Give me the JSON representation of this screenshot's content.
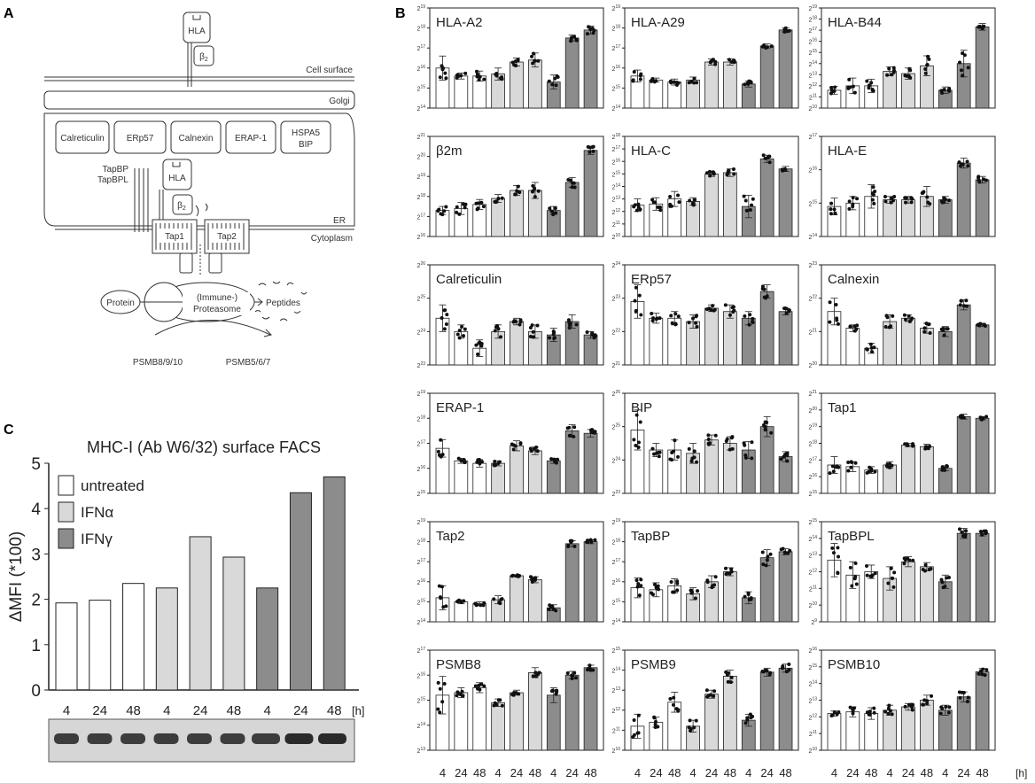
{
  "panels": {
    "a": "A",
    "b": "B",
    "c": "C"
  },
  "diagram": {
    "hla": "HLA",
    "b2": "β",
    "cell_surface": "Cell surface",
    "golgi": "Golgi",
    "er_proteins": [
      "Calreticulin",
      "ERp57",
      "Calnexin",
      "ERAP-1"
    ],
    "hspa5_line1": "HSPA5",
    "hspa5_line2": "BIP",
    "tapbp": "TapBP",
    "tapbpl": "TapBPL",
    "er": "ER",
    "cytoplasm": "Cytoplasm",
    "tap1": "Tap1",
    "tap2": "Tap2",
    "protein": "Protein",
    "proteasome_line1": "(Immune-)",
    "proteasome_line2": "Proteasome",
    "peptides": "Peptides",
    "psmb_immuno": "PSMB8/9/10",
    "psmb_const": "PSMB5/6/7"
  },
  "colors": {
    "untreated": "#ffffff",
    "ifna": "#d9d9d9",
    "ifng": "#8c8c8c",
    "stroke": "#222222",
    "grid": "#444444"
  },
  "chart_data": [
    {
      "type": "bar",
      "title": "MHC-I (Ab W6/32) surface FACS",
      "ylabel": "ΔMFI (*100)",
      "ylim": [
        0,
        5
      ],
      "yticks": [
        "0",
        "1",
        "2",
        "3",
        "4",
        "5"
      ],
      "categories": [
        "4",
        "24",
        "48",
        "4",
        "24",
        "48",
        "4",
        "24",
        "48"
      ],
      "unit": "[h]",
      "legend": [
        "untreated",
        "IFNα",
        "IFNγ"
      ],
      "treatment": [
        "untreated",
        "untreated",
        "untreated",
        "ifna",
        "ifna",
        "ifna",
        "ifng",
        "ifng",
        "ifng"
      ],
      "values": [
        1.92,
        1.98,
        2.35,
        2.25,
        3.38,
        2.93,
        2.25,
        4.35,
        4.7
      ]
    },
    {
      "title": "HLA-A2",
      "yexp": [
        14,
        19
      ],
      "values": [
        16.0,
        15.6,
        15.6,
        15.7,
        16.3,
        16.4,
        15.3,
        17.5,
        17.9
      ],
      "err": [
        0.6,
        0.15,
        0.25,
        0.3,
        0.2,
        0.35,
        0.35,
        0.15,
        0.2
      ]
    },
    {
      "title": "HLA-A29",
      "yexp": [
        14,
        19
      ],
      "values": [
        15.6,
        15.4,
        15.3,
        15.4,
        16.3,
        16.3,
        15.2,
        17.1,
        17.9
      ],
      "err": [
        0.3,
        0.1,
        0.15,
        0.15,
        0.15,
        0.15,
        0.15,
        0.1,
        0.1
      ]
    },
    {
      "title": "HLA-B44",
      "yexp": [
        10,
        19
      ],
      "values": [
        11.6,
        12.0,
        12.0,
        13.3,
        13.1,
        13.8,
        11.6,
        14.0,
        17.3
      ],
      "err": [
        0.35,
        0.7,
        0.6,
        0.4,
        0.5,
        0.9,
        0.3,
        1.2,
        0.3
      ]
    },
    {
      "title": "β2m",
      "yexp": [
        16,
        21
      ],
      "values": [
        17.3,
        17.4,
        17.6,
        17.9,
        18.3,
        18.3,
        17.3,
        18.7,
        20.3
      ],
      "err": [
        0.2,
        0.3,
        0.25,
        0.2,
        0.25,
        0.4,
        0.2,
        0.25,
        0.2
      ]
    },
    {
      "title": "HLA-C",
      "yexp": [
        10,
        18
      ],
      "values": [
        12.5,
        12.6,
        13.0,
        12.8,
        15.0,
        15.1,
        12.4,
        16.2,
        15.4
      ],
      "err": [
        0.5,
        0.5,
        0.6,
        0.3,
        0.2,
        0.3,
        0.9,
        0.3,
        0.2
      ]
    },
    {
      "title": "HLA-E",
      "yexp": [
        14,
        17
      ],
      "values": [
        14.9,
        15.0,
        15.2,
        15.1,
        15.1,
        15.2,
        15.1,
        16.2,
        15.7
      ],
      "err": [
        0.25,
        0.2,
        0.35,
        0.1,
        0.1,
        0.3,
        0.1,
        0.15,
        0.1
      ]
    },
    {
      "title": "Calreticulin",
      "yexp": [
        23,
        26
      ],
      "values": [
        24.4,
        24.0,
        23.5,
        24.0,
        24.3,
        24.0,
        23.9,
        24.3,
        23.9
      ],
      "err": [
        0.4,
        0.2,
        0.25,
        0.2,
        0.1,
        0.2,
        0.2,
        0.2,
        0.1
      ]
    },
    {
      "title": "ERp57",
      "yexp": [
        21,
        24
      ],
      "values": [
        22.9,
        22.4,
        22.4,
        22.3,
        22.7,
        22.6,
        22.4,
        23.2,
        22.6
      ],
      "err": [
        0.5,
        0.15,
        0.2,
        0.2,
        0.1,
        0.2,
        0.2,
        0.2,
        0.1
      ]
    },
    {
      "title": "Calnexin",
      "yexp": [
        20,
        23
      ],
      "values": [
        21.6,
        21.1,
        20.5,
        21.3,
        21.4,
        21.1,
        21.0,
        21.8,
        21.2
      ],
      "err": [
        0.4,
        0.1,
        0.15,
        0.2,
        0.1,
        0.15,
        0.15,
        0.15,
        0.05
      ]
    },
    {
      "title": "ERAP-1",
      "yexp": [
        15,
        19
      ],
      "values": [
        16.8,
        16.3,
        16.2,
        16.2,
        16.9,
        16.7,
        16.3,
        17.5,
        17.4
      ],
      "err": [
        0.35,
        0.1,
        0.15,
        0.1,
        0.2,
        0.15,
        0.1,
        0.25,
        0.15
      ]
    },
    {
      "title": "BIP",
      "yexp": [
        23,
        26
      ],
      "values": [
        24.9,
        24.3,
        24.3,
        24.2,
        24.6,
        24.5,
        24.3,
        25.0,
        24.1
      ],
      "err": [
        0.6,
        0.2,
        0.3,
        0.3,
        0.15,
        0.2,
        0.25,
        0.3,
        0.15
      ]
    },
    {
      "title": "Tap1",
      "yexp": [
        15,
        21
      ],
      "values": [
        16.7,
        16.6,
        16.4,
        16.7,
        17.9,
        17.8,
        16.5,
        19.6,
        19.5
      ],
      "err": [
        0.5,
        0.3,
        0.2,
        0.2,
        0.1,
        0.15,
        0.15,
        0.15,
        0.1
      ]
    },
    {
      "title": "Tap2",
      "yexp": [
        14,
        19
      ],
      "values": [
        15.2,
        15.0,
        14.9,
        15.1,
        16.3,
        16.1,
        14.7,
        17.9,
        18.0
      ],
      "err": [
        0.6,
        0.1,
        0.1,
        0.2,
        0.05,
        0.15,
        0.15,
        0.15,
        0.1
      ]
    },
    {
      "title": "TapBP",
      "yexp": [
        14,
        19
      ],
      "values": [
        15.7,
        15.6,
        15.8,
        15.4,
        16.0,
        16.5,
        15.2,
        17.2,
        17.5
      ],
      "err": [
        0.5,
        0.35,
        0.35,
        0.3,
        0.3,
        0.2,
        0.3,
        0.4,
        0.15
      ]
    },
    {
      "title": "TapBPL",
      "yexp": [
        9,
        15
      ],
      "values": [
        12.7,
        11.8,
        12.0,
        11.6,
        12.6,
        12.3,
        11.4,
        14.3,
        14.3
      ],
      "err": [
        1.0,
        0.8,
        0.4,
        0.7,
        0.3,
        0.25,
        0.4,
        0.3,
        0.15
      ]
    },
    {
      "title": "PSMB8",
      "yexp": [
        13,
        17
      ],
      "values": [
        15.2,
        15.3,
        15.5,
        14.9,
        15.3,
        16.1,
        15.2,
        16.0,
        16.3
      ],
      "err": [
        0.75,
        0.2,
        0.2,
        0.15,
        0.1,
        0.2,
        0.3,
        0.15,
        0.1
      ]
    },
    {
      "title": "PSMB9",
      "yexp": [
        10,
        15
      ],
      "values": [
        11.2,
        11.4,
        12.4,
        11.2,
        12.8,
        13.7,
        11.5,
        13.9,
        14.1
      ],
      "err": [
        0.6,
        0.25,
        0.5,
        0.3,
        0.2,
        0.3,
        0.3,
        0.2,
        0.2
      ]
    },
    {
      "title": "PSMB10",
      "yexp": [
        10,
        16
      ],
      "values": [
        12.2,
        12.3,
        12.2,
        12.4,
        12.6,
        13.0,
        12.4,
        13.2,
        14.7
      ],
      "err": [
        0.15,
        0.3,
        0.35,
        0.3,
        0.2,
        0.3,
        0.3,
        0.3,
        0.2
      ]
    }
  ],
  "b_xticks": [
    "4",
    "24",
    "48",
    "4",
    "24",
    "48",
    "4",
    "24",
    "48"
  ],
  "b_unit": "[h]",
  "blot": {
    "lanes": 9
  }
}
